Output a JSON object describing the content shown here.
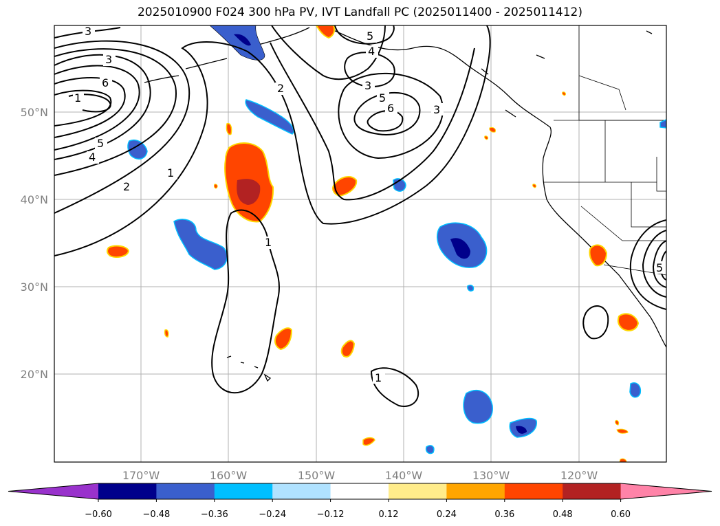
{
  "title": "2025010900 F024 300 hPa PV, IVT Landfall PC (2025011400 - 2025011412)",
  "map": {
    "lon_labels": [
      "170°W",
      "160°W",
      "150°W",
      "140°W",
      "130°W",
      "120°W"
    ],
    "lat_labels": [
      "50°N",
      "40°N",
      "30°N",
      "20°N"
    ],
    "contour_labels": [
      "3",
      "3",
      "6",
      "5",
      "4",
      "2",
      "1",
      "2",
      "1",
      "5",
      "4",
      "3",
      "5",
      "6",
      "3",
      "1",
      "1",
      "5"
    ]
  },
  "colorbar": {
    "ticks": [
      "−0.60",
      "−0.48",
      "−0.36",
      "−0.24",
      "−0.12",
      "0.12",
      "0.24",
      "0.36",
      "0.48",
      "0.60"
    ],
    "colors": [
      "#9932cc",
      "#00008b",
      "#3a5fcd",
      "#00bfff",
      "#b0e2ff",
      "#ffffff",
      "#ffec8b",
      "#ffa500",
      "#ff4500",
      "#b22222",
      "#ff83a8"
    ]
  }
}
